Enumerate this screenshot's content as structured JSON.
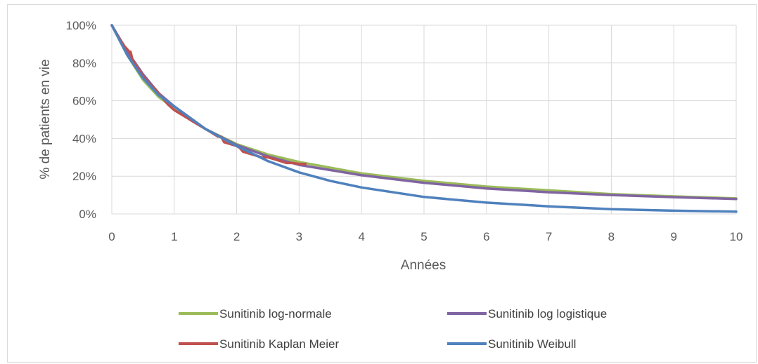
{
  "chart_data": {
    "type": "line",
    "title": "",
    "xlabel": "Années",
    "ylabel": "% de patients en vie",
    "xlim": [
      0,
      10
    ],
    "ylim": [
      0,
      100
    ],
    "x_ticks": [
      "0",
      "1",
      "2",
      "3",
      "4",
      "5",
      "6",
      "7",
      "8",
      "9",
      "10"
    ],
    "y_ticks": [
      "0%",
      "20%",
      "40%",
      "60%",
      "80%",
      "100%"
    ],
    "grid": true,
    "legend_position": "bottom",
    "series": [
      {
        "name": "Sunitinib log-normale",
        "color": "#9bbb59",
        "x": [
          0,
          0.25,
          0.5,
          0.75,
          1,
          1.5,
          2,
          2.5,
          3,
          4,
          5,
          6,
          7,
          8,
          9,
          10
        ],
        "y": [
          100,
          84,
          71,
          62,
          56,
          45,
          37,
          31.5,
          27.5,
          21.5,
          17.5,
          14.5,
          12.5,
          10.5,
          9.3,
          8.2
        ]
      },
      {
        "name": "Sunitinib log logistique",
        "color": "#8064a2",
        "x": [
          0,
          0.25,
          0.5,
          0.75,
          1,
          1.5,
          2,
          2.5,
          3,
          4,
          5,
          6,
          7,
          8,
          9,
          10
        ],
        "y": [
          100,
          86,
          74,
          64,
          57,
          45,
          36.5,
          30.5,
          26,
          20.5,
          16.5,
          13.5,
          11.5,
          10,
          8.9,
          7.9
        ]
      },
      {
        "name": "Sunitinib Kaplan Meier",
        "color": "#c0504d",
        "x": [
          0,
          0.1,
          0.2,
          0.28,
          0.3,
          0.33,
          0.4,
          0.5,
          0.6,
          0.7,
          0.8,
          0.9,
          1.0,
          1.1,
          1.2,
          1.3,
          1.4,
          1.5,
          1.6,
          1.7,
          1.75,
          1.8,
          1.9,
          2.0,
          2.05,
          2.1,
          2.2,
          2.3,
          2.4,
          2.5,
          2.6,
          2.7,
          2.8,
          2.9,
          3.0,
          3.1
        ],
        "y": [
          100,
          94,
          89,
          86,
          86,
          82,
          78,
          73,
          69,
          66,
          62,
          58,
          55,
          53,
          51,
          49,
          47,
          45,
          43,
          41,
          41,
          38,
          37,
          36,
          35,
          33,
          32,
          31,
          30,
          30,
          29,
          28,
          27,
          27,
          26.5,
          26.5
        ]
      },
      {
        "name": "Sunitinib Weibull",
        "color": "#4f81bd",
        "x": [
          0,
          0.25,
          0.5,
          0.75,
          1,
          1.5,
          2,
          2.5,
          3,
          3.5,
          4,
          5,
          6,
          7,
          8,
          9,
          10
        ],
        "y": [
          100,
          84,
          72,
          63,
          57,
          45,
          36,
          28,
          22,
          17.5,
          14,
          9,
          6,
          4,
          2.5,
          1.7,
          1.2
        ]
      }
    ]
  }
}
